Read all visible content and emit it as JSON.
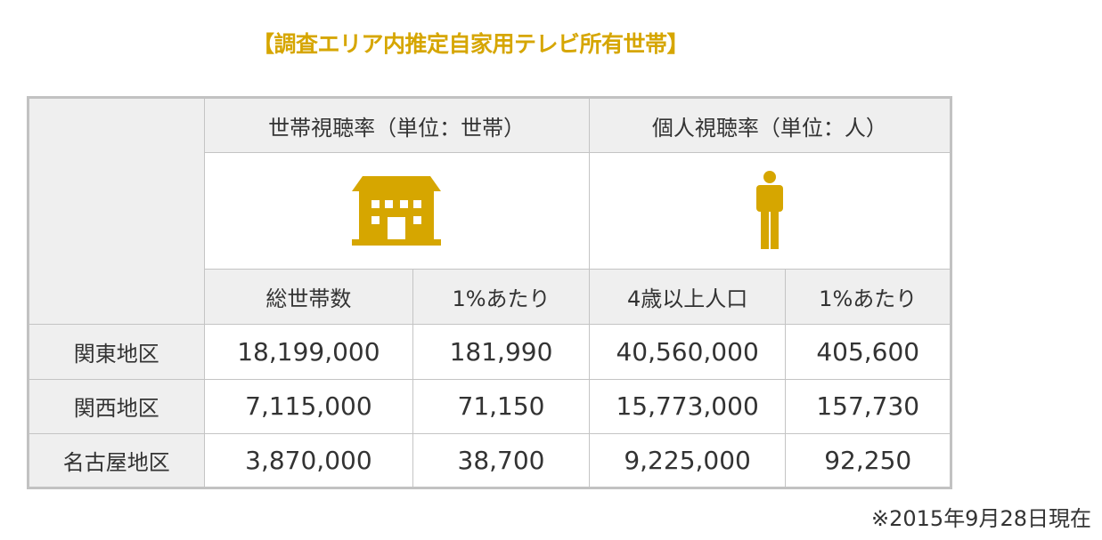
{
  "title": "【調査エリア内推定自家用テレビ所有世帯】",
  "colors": {
    "accent": "#d6a600",
    "header_bg": "#efefef",
    "border": "#c2c2c2"
  },
  "table": {
    "group_headers": [
      {
        "label": "世帯視聴率（単位：世帯）",
        "icon": "house-icon"
      },
      {
        "label": "個人視聴率（単位：人）",
        "icon": "person-icon"
      }
    ],
    "sub_headers": [
      "総世帯数",
      "1%あたり",
      "4歳以上人口",
      "1%あたり"
    ],
    "rows": [
      {
        "region": "関東地区",
        "values": [
          "18,199,000",
          "181,990",
          "40,560,000",
          "405,600"
        ]
      },
      {
        "region": "関西地区",
        "values": [
          "7,115,000",
          "71,150",
          "15,773,000",
          "157,730"
        ]
      },
      {
        "region": "名古屋地区",
        "values": [
          "3,870,000",
          "38,700",
          "9,225,000",
          "92,250"
        ]
      }
    ]
  },
  "footnote": "※2015年9月28日現在"
}
